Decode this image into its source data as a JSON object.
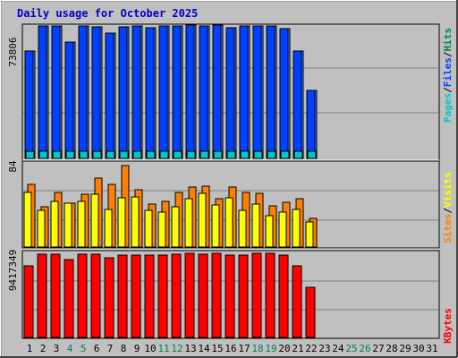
{
  "title": "Daily usage for October 2025",
  "colors": {
    "frame_bg": "#c0c0c0",
    "plot_bg": "#c0c0c0",
    "title": "#0000cc",
    "hits": "#00805c",
    "files": "#0040ff",
    "pages": "#00c8c8",
    "visits": "#ffff00",
    "sites": "#ff8000",
    "kbytes": "#ff0000",
    "weekend_day": "#00805c",
    "weekday": "#000000"
  },
  "right_labels": {
    "top": [
      {
        "text": "Pages",
        "color": "#00c8c8"
      },
      {
        "text": "/",
        "color": "#000000"
      },
      {
        "text": "Files",
        "color": "#0040ff"
      },
      {
        "text": "/",
        "color": "#000000"
      },
      {
        "text": "Hits",
        "color": "#00805c"
      }
    ],
    "middle": [
      {
        "text": "Sites",
        "color": "#ff8000"
      },
      {
        "text": "/",
        "color": "#000000"
      },
      {
        "text": "Visits",
        "color": "#ffff00"
      }
    ],
    "bottom": [
      {
        "text": "KBytes",
        "color": "#ff0000"
      }
    ]
  },
  "chart_data": [
    {
      "type": "bar",
      "panel": "hits-files-pages",
      "ymax_label": "73806",
      "ylim": [
        0,
        73806
      ],
      "categories": [
        "1",
        "2",
        "3",
        "4",
        "5",
        "6",
        "7",
        "8",
        "9",
        "10",
        "11",
        "12",
        "13",
        "14",
        "15",
        "16",
        "17",
        "18",
        "19",
        "20",
        "21",
        "22",
        "23",
        "24",
        "25",
        "26",
        "27",
        "28",
        "29",
        "30",
        "31"
      ],
      "weekend": [
        "4",
        "5",
        "11",
        "12",
        "18",
        "19",
        "25",
        "26"
      ],
      "series": [
        {
          "name": "Hits",
          "values": [
            60000,
            74000,
            74000,
            65000,
            74000,
            73500,
            70000,
            73500,
            74000,
            73000,
            74000,
            74000,
            74500,
            74000,
            74500,
            73000,
            74000,
            74000,
            74000,
            72500,
            60000,
            38000,
            0,
            0,
            0,
            0,
            0,
            0,
            0,
            0,
            0
          ]
        },
        {
          "name": "Files",
          "values": [
            60000,
            73800,
            73800,
            65000,
            73800,
            73500,
            70000,
            73500,
            73800,
            72800,
            73800,
            73800,
            74300,
            73800,
            74300,
            72800,
            73800,
            73800,
            73800,
            72300,
            59800,
            37800,
            0,
            0,
            0,
            0,
            0,
            0,
            0,
            0,
            0
          ]
        },
        {
          "name": "Pages",
          "values": [
            2000,
            2400,
            2400,
            2100,
            2400,
            2400,
            2300,
            2400,
            2400,
            2300,
            2400,
            2400,
            2400,
            2400,
            2400,
            2300,
            2400,
            2400,
            2400,
            2300,
            2000,
            1300,
            0,
            0,
            0,
            0,
            0,
            0,
            0,
            0,
            0
          ]
        }
      ]
    },
    {
      "type": "bar",
      "panel": "visits-sites",
      "ymax_label": "84",
      "ylim": [
        0,
        84
      ],
      "series": [
        {
          "name": "Visits",
          "values": [
            56,
            37,
            47,
            45,
            47,
            54,
            38,
            50,
            51,
            37,
            36,
            41,
            49,
            55,
            43,
            50,
            37,
            44,
            32,
            36,
            38,
            26,
            0,
            0,
            0,
            0,
            0,
            0,
            0,
            0,
            0
          ]
        },
        {
          "name": "Sites",
          "values": [
            64,
            41,
            56,
            45,
            54,
            70,
            64,
            83,
            58,
            44,
            47,
            56,
            61,
            62,
            49,
            61,
            56,
            55,
            42,
            46,
            49,
            29,
            0,
            0,
            0,
            0,
            0,
            0,
            0,
            0,
            0
          ]
        }
      ]
    },
    {
      "type": "bar",
      "panel": "kbytes",
      "ymax_label": "9417349",
      "ylim": [
        0,
        9417349
      ],
      "series": [
        {
          "name": "KBytes",
          "values": [
            8000000,
            9300000,
            9300000,
            8700000,
            9300000,
            9300000,
            8900000,
            9200000,
            9200000,
            9200000,
            9200000,
            9300000,
            9400000,
            9350000,
            9400000,
            9250000,
            9250000,
            9400000,
            9400000,
            9250000,
            8000000,
            5600000,
            0,
            0,
            0,
            0,
            0,
            0,
            0,
            0,
            0
          ]
        }
      ]
    }
  ]
}
